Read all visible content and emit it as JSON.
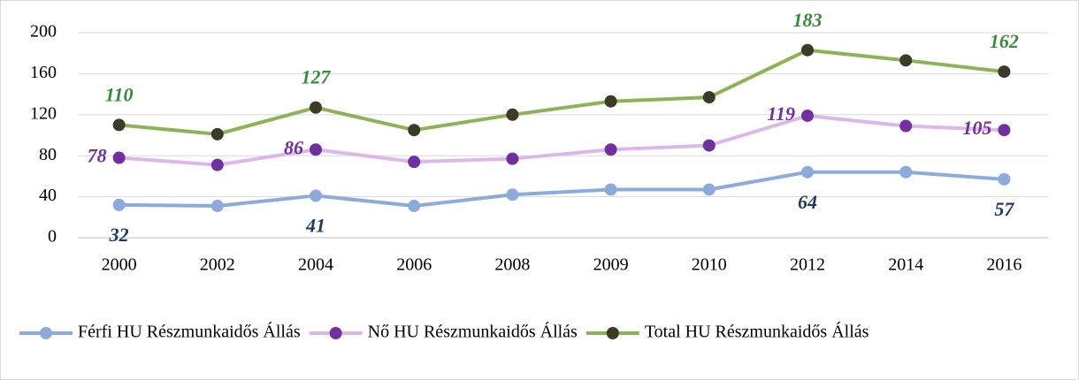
{
  "chart_data": {
    "type": "line",
    "categories": [
      "2000",
      "2002",
      "2004",
      "2006",
      "2008",
      "2009",
      "2010",
      "2012",
      "2014",
      "2016"
    ],
    "series": [
      {
        "name": "Férfi HU Részmunkaidős Állás",
        "color": "#8eaadb",
        "marker_color": "#8eaadb",
        "label_color": "#1f3a5f",
        "label_position": "below",
        "values": [
          32,
          31,
          41,
          31,
          42,
          47,
          47,
          64,
          64,
          57
        ],
        "value_labels": [
          "32",
          null,
          "41",
          null,
          null,
          null,
          null,
          "64",
          null,
          "57"
        ]
      },
      {
        "name": "Nő HU Részmunkaidős Állás",
        "color": "#dcb8ea",
        "marker_color": "#7030a0",
        "label_color": "#7030a0",
        "label_position": "left",
        "values": [
          78,
          71,
          86,
          74,
          77,
          86,
          90,
          119,
          109,
          105
        ],
        "value_labels": [
          "78",
          null,
          "86",
          null,
          null,
          null,
          null,
          "119",
          null,
          "105"
        ]
      },
      {
        "name": "Total HU Részmunkaidős Állás",
        "color": "#8db356",
        "marker_color": "#3d3a28",
        "label_color": "#3b8a3b",
        "label_position": "above",
        "values": [
          110,
          101,
          127,
          105,
          120,
          133,
          137,
          183,
          173,
          162
        ],
        "value_labels": [
          "110",
          null,
          "127",
          null,
          null,
          null,
          null,
          "183",
          null,
          "162"
        ]
      }
    ],
    "ylim": [
      0,
      200
    ],
    "yticks": [
      0,
      40,
      80,
      120,
      160,
      200
    ],
    "grid": true,
    "legend": "bottom"
  }
}
